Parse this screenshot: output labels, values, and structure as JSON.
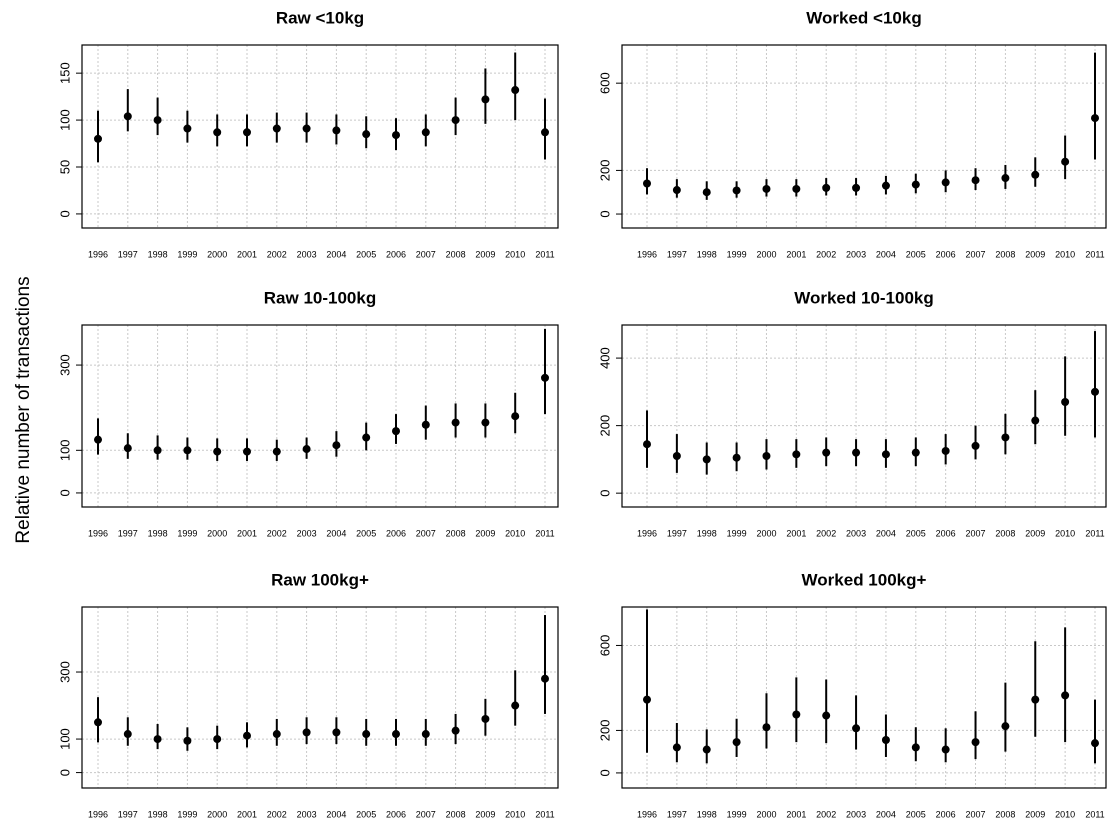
{
  "ylabel": "Relative number of transactions",
  "chart_data": [
    {
      "type": "errorbar",
      "title": "Raw <10kg",
      "color": "#000000",
      "grid": true,
      "categories": [
        "1996",
        "1997",
        "1998",
        "1999",
        "2000",
        "2001",
        "2002",
        "2003",
        "2004",
        "2005",
        "2006",
        "2007",
        "2008",
        "2009",
        "2010",
        "2011"
      ],
      "values": [
        80,
        104,
        100,
        91,
        87,
        87,
        91,
        91,
        89,
        85,
        84,
        87,
        100,
        122,
        132,
        87
      ],
      "lower": [
        55,
        88,
        84,
        76,
        72,
        72,
        76,
        76,
        74,
        70,
        68,
        72,
        84,
        96,
        100,
        58
      ],
      "upper": [
        110,
        133,
        124,
        110,
        106,
        106,
        108,
        108,
        106,
        104,
        102,
        106,
        124,
        155,
        172,
        123
      ],
      "ylim": [
        -15,
        180
      ],
      "yticks": [
        0,
        50,
        100,
        150
      ]
    },
    {
      "type": "errorbar",
      "title": "Worked <10kg",
      "color": "#000000",
      "grid": true,
      "categories": [
        "1996",
        "1997",
        "1998",
        "1999",
        "2000",
        "2001",
        "2002",
        "2003",
        "2004",
        "2005",
        "2006",
        "2007",
        "2008",
        "2009",
        "2010",
        "2011"
      ],
      "values": [
        140,
        110,
        100,
        108,
        115,
        115,
        120,
        120,
        130,
        135,
        145,
        155,
        165,
        180,
        240,
        440
      ],
      "lower": [
        90,
        75,
        65,
        75,
        80,
        80,
        85,
        85,
        90,
        95,
        100,
        110,
        115,
        125,
        160,
        250
      ],
      "upper": [
        210,
        160,
        150,
        150,
        160,
        160,
        165,
        165,
        175,
        185,
        200,
        210,
        225,
        260,
        360,
        740
      ],
      "ylim": [
        -64,
        775
      ],
      "yticks": [
        0,
        200,
        600
      ]
    },
    {
      "type": "errorbar",
      "title": "Raw 10-100kg",
      "color": "#000000",
      "grid": true,
      "categories": [
        "1996",
        "1997",
        "1998",
        "1999",
        "2000",
        "2001",
        "2002",
        "2003",
        "2004",
        "2005",
        "2006",
        "2007",
        "2008",
        "2009",
        "2010",
        "2011"
      ],
      "values": [
        125,
        105,
        100,
        100,
        97,
        97,
        97,
        103,
        112,
        130,
        145,
        160,
        165,
        165,
        180,
        270
      ],
      "lower": [
        90,
        80,
        78,
        78,
        75,
        75,
        75,
        80,
        85,
        100,
        115,
        125,
        130,
        130,
        140,
        185
      ],
      "upper": [
        175,
        140,
        135,
        130,
        128,
        128,
        125,
        130,
        145,
        165,
        185,
        205,
        210,
        210,
        235,
        385
      ],
      "ylim": [
        -33,
        394
      ],
      "yticks": [
        0,
        100,
        300
      ]
    },
    {
      "type": "errorbar",
      "title": "Worked 10-100kg",
      "color": "#000000",
      "grid": true,
      "categories": [
        "1996",
        "1997",
        "1998",
        "1999",
        "2000",
        "2001",
        "2002",
        "2003",
        "2004",
        "2005",
        "2006",
        "2007",
        "2008",
        "2009",
        "2010",
        "2011"
      ],
      "values": [
        145,
        110,
        100,
        105,
        110,
        115,
        120,
        120,
        115,
        120,
        125,
        140,
        165,
        215,
        270,
        300
      ],
      "lower": [
        75,
        60,
        55,
        65,
        70,
        75,
        80,
        80,
        75,
        80,
        85,
        100,
        115,
        145,
        170,
        165
      ],
      "upper": [
        245,
        175,
        150,
        150,
        160,
        160,
        165,
        160,
        160,
        165,
        175,
        200,
        235,
        305,
        405,
        480
      ],
      "ylim": [
        -41,
        498
      ],
      "yticks": [
        0,
        200,
        400
      ]
    },
    {
      "type": "errorbar",
      "title": "Raw 100kg+",
      "color": "#000000",
      "grid": true,
      "categories": [
        "1996",
        "1997",
        "1998",
        "1999",
        "2000",
        "2001",
        "2002",
        "2003",
        "2004",
        "2005",
        "2006",
        "2007",
        "2008",
        "2009",
        "2010",
        "2011"
      ],
      "values": [
        150,
        115,
        100,
        95,
        100,
        110,
        115,
        120,
        120,
        115,
        115,
        115,
        125,
        160,
        200,
        280
      ],
      "lower": [
        90,
        80,
        70,
        65,
        70,
        75,
        80,
        85,
        85,
        80,
        80,
        80,
        85,
        110,
        140,
        175
      ],
      "upper": [
        225,
        165,
        145,
        135,
        140,
        150,
        160,
        165,
        165,
        160,
        160,
        160,
        175,
        220,
        305,
        470
      ],
      "ylim": [
        -46,
        494
      ],
      "yticks": [
        0,
        100,
        300
      ]
    },
    {
      "type": "errorbar",
      "title": "Worked 100kg+",
      "color": "#000000",
      "grid": true,
      "categories": [
        "1996",
        "1997",
        "1998",
        "1999",
        "2000",
        "2001",
        "2002",
        "2003",
        "2004",
        "2005",
        "2006",
        "2007",
        "2008",
        "2009",
        "2010",
        "2011"
      ],
      "values": [
        345,
        120,
        110,
        145,
        215,
        275,
        270,
        210,
        155,
        120,
        110,
        145,
        220,
        345,
        365,
        140
      ],
      "lower": [
        95,
        50,
        45,
        75,
        115,
        145,
        140,
        110,
        75,
        55,
        50,
        65,
        100,
        170,
        145,
        45
      ],
      "upper": [
        770,
        235,
        205,
        255,
        375,
        450,
        440,
        365,
        275,
        215,
        210,
        290,
        425,
        620,
        685,
        345
      ],
      "ylim": [
        -71,
        781
      ],
      "yticks": [
        0,
        200,
        600
      ]
    }
  ]
}
